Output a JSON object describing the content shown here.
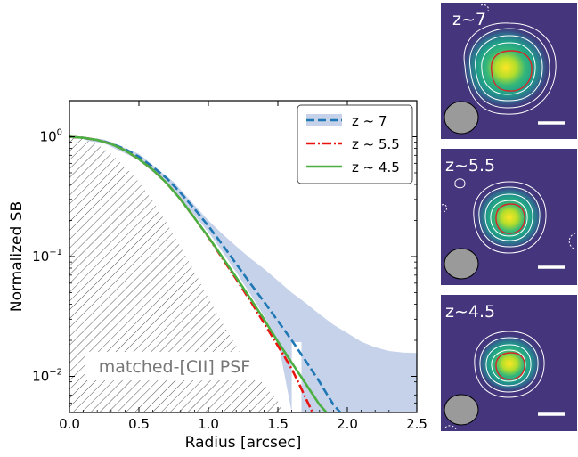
{
  "chart_data": {
    "type": "line",
    "xlabel": "Radius [arcsec]",
    "ylabel": "Normalized SB",
    "xlim": [
      0.0,
      2.5
    ],
    "ylim": [
      0.005,
      2.0
    ],
    "yscale": "log",
    "grid": false,
    "legend_position": "top-right",
    "x_ticks": [
      {
        "value": 0.0,
        "label": "0.0"
      },
      {
        "value": 0.5,
        "label": "0.5"
      },
      {
        "value": 1.0,
        "label": "1.0"
      },
      {
        "value": 1.5,
        "label": "1.5"
      },
      {
        "value": 2.0,
        "label": "2.0"
      },
      {
        "value": 2.5,
        "label": "2.5"
      }
    ],
    "y_ticks": [
      {
        "value": 1.0,
        "base": "10",
        "exp": "0"
      },
      {
        "value": 0.1,
        "base": "10",
        "exp": "−1"
      },
      {
        "value": 0.01,
        "base": "10",
        "exp": "−2"
      }
    ],
    "psf": {
      "label": "matched-[CII] PSF",
      "x": [
        0.0,
        0.1,
        0.2,
        0.3,
        0.4,
        0.5,
        0.6,
        0.7,
        0.8,
        0.9,
        1.0,
        1.1,
        1.2,
        1.3,
        1.4,
        1.5,
        1.55
      ],
      "y": [
        1.0,
        0.96,
        0.86,
        0.72,
        0.56,
        0.42,
        0.29,
        0.19,
        0.12,
        0.075,
        0.045,
        0.028,
        0.018,
        0.012,
        0.0085,
        0.0062,
        0.005
      ]
    },
    "series": [
      {
        "name": "z ~ 7",
        "color": "#1f77b4",
        "band_color": "#c5d2ea",
        "style": "dashed",
        "x": [
          0.0,
          0.1,
          0.2,
          0.3,
          0.4,
          0.5,
          0.6,
          0.7,
          0.8,
          0.9,
          1.0,
          1.1,
          1.2,
          1.3,
          1.4,
          1.5,
          1.6,
          1.7,
          1.8,
          1.85,
          1.9,
          1.95
        ],
        "y": [
          1.0,
          0.98,
          0.94,
          0.88,
          0.79,
          0.68,
          0.56,
          0.45,
          0.34,
          0.25,
          0.18,
          0.126,
          0.087,
          0.06,
          0.042,
          0.029,
          0.02,
          0.0135,
          0.009,
          0.0072,
          0.0058,
          0.005
        ],
        "band_x": [
          0.0,
          0.25,
          0.5,
          0.75,
          1.0,
          1.1,
          1.2,
          1.3,
          1.4,
          1.5,
          1.6,
          1.7,
          1.8,
          1.9,
          2.0,
          2.1,
          2.2,
          2.3,
          2.4,
          2.5
        ],
        "band_upper": [
          1.02,
          0.95,
          0.72,
          0.42,
          0.2,
          0.155,
          0.122,
          0.097,
          0.079,
          0.063,
          0.05,
          0.041,
          0.033,
          0.027,
          0.023,
          0.0195,
          0.0175,
          0.0163,
          0.0158,
          0.0157
        ],
        "band_lower": [
          0.98,
          0.88,
          0.64,
          0.36,
          0.16,
          0.11,
          0.074,
          0.049,
          0.032,
          0.02,
          0.005,
          0.005,
          0.005,
          0.005,
          0.005,
          0.005,
          0.005,
          0.005,
          0.005,
          0.005
        ],
        "band_gap": [
          1.6,
          1.67
        ]
      },
      {
        "name": "z ~ 5.5",
        "color": "#e8130f",
        "style": "dashdot",
        "x": [
          0.0,
          0.1,
          0.2,
          0.3,
          0.4,
          0.5,
          0.6,
          0.7,
          0.8,
          0.9,
          1.0,
          1.1,
          1.2,
          1.3,
          1.4,
          1.5,
          1.55,
          1.6,
          1.65,
          1.7,
          1.75
        ],
        "y": [
          1.0,
          0.98,
          0.94,
          0.87,
          0.77,
          0.65,
          0.53,
          0.41,
          0.3,
          0.21,
          0.145,
          0.097,
          0.065,
          0.043,
          0.028,
          0.018,
          0.0145,
          0.0115,
          0.0088,
          0.0066,
          0.005
        ]
      },
      {
        "name": "z ~ 4.5",
        "color": "#4caf42",
        "style": "solid",
        "x": [
          0.0,
          0.1,
          0.2,
          0.3,
          0.4,
          0.5,
          0.6,
          0.7,
          0.8,
          0.9,
          1.0,
          1.1,
          1.2,
          1.3,
          1.4,
          1.5,
          1.6,
          1.7,
          1.75,
          1.8,
          1.85
        ],
        "y": [
          1.0,
          0.98,
          0.94,
          0.87,
          0.77,
          0.65,
          0.53,
          0.41,
          0.3,
          0.21,
          0.146,
          0.099,
          0.067,
          0.045,
          0.03,
          0.0195,
          0.013,
          0.0087,
          0.0071,
          0.0058,
          0.005
        ]
      }
    ]
  },
  "panels": [
    {
      "label": "z~7",
      "core_rx": 21,
      "core_ry": 19
    },
    {
      "label": "z~5.5",
      "core_rx": 16,
      "core_ry": 15
    },
    {
      "label": "z~4.5",
      "core_rx": 16,
      "core_ry": 14
    }
  ]
}
